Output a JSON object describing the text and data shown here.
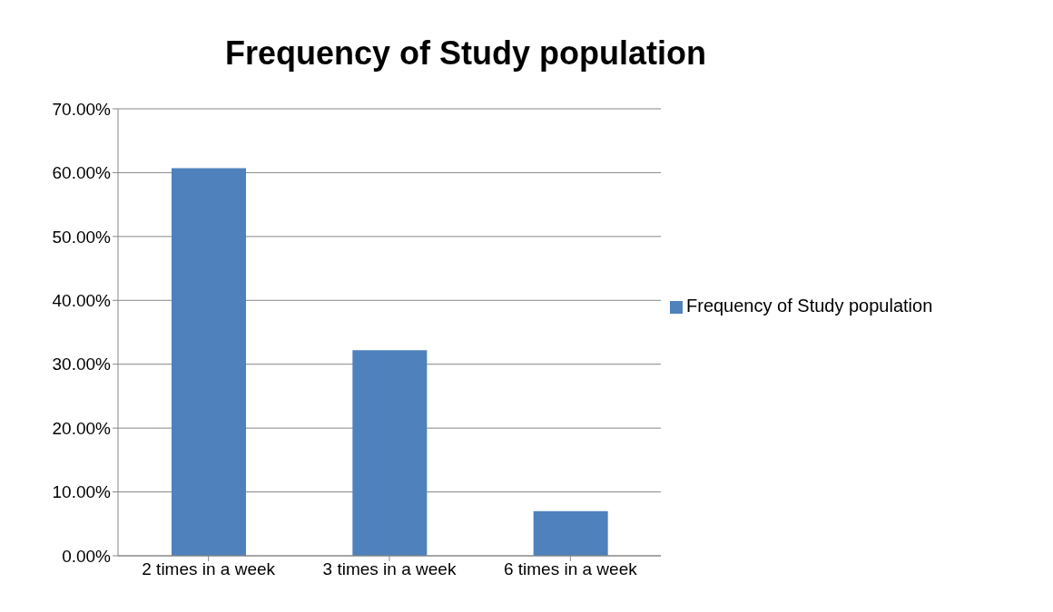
{
  "chart_data": {
    "type": "bar",
    "title": "Frequency of Study population",
    "categories": [
      "2 times in a  week",
      "3 times in a week",
      "6 times in a week"
    ],
    "series": [
      {
        "name": "Frequency of Study population",
        "color": "#4f81bd",
        "values": [
          60.7,
          32.2,
          7
        ]
      }
    ],
    "ylim": [
      0,
      70
    ],
    "yticks": [
      {
        "value": 0,
        "label": "0.00%"
      },
      {
        "value": 10,
        "label": "10.00%"
      },
      {
        "value": 20,
        "label": "20.00%"
      },
      {
        "value": 30,
        "label": "30.00%"
      },
      {
        "value": 40,
        "label": "40.00%"
      },
      {
        "value": 50,
        "label": "50.00%"
      },
      {
        "value": 60,
        "label": "60.00%"
      },
      {
        "value": 70,
        "label": "70.00%"
      }
    ],
    "grid": "y",
    "legend": "right"
  }
}
